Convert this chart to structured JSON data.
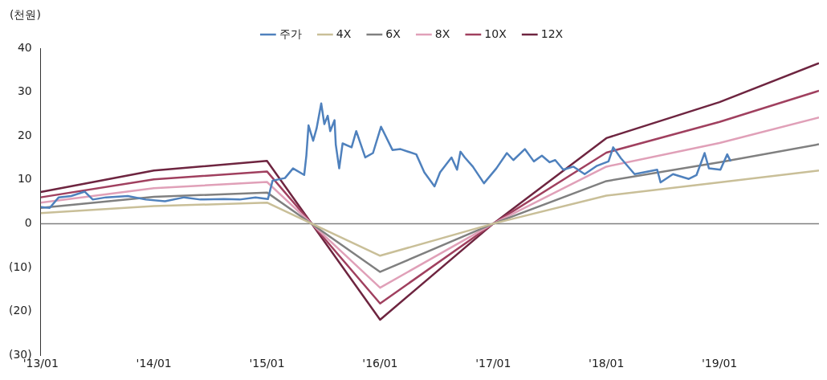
{
  "chart_data": {
    "type": "line",
    "ylabel": "(천원)",
    "legend": "top",
    "line_style": "solid",
    "marker": "none",
    "xlim": [
      "2013-01-01",
      "2019-11-18"
    ],
    "xticks": [
      {
        "value": "2013-01",
        "label": "'13/01"
      },
      {
        "value": "2014-01",
        "label": "'14/01"
      },
      {
        "value": "2015-01",
        "label": "'15/01"
      },
      {
        "value": "2016-01",
        "label": "'16/01"
      },
      {
        "value": "2017-01",
        "label": "'17/01"
      },
      {
        "value": "2018-01",
        "label": "'18/01"
      },
      {
        "value": "2019-01",
        "label": "'19/01"
      }
    ],
    "ylim": [
      -30,
      40
    ],
    "yticks": [
      {
        "value": -30,
        "label": "(30)"
      },
      {
        "value": -20,
        "label": "(20)"
      },
      {
        "value": -10,
        "label": "(10)"
      },
      0,
      10,
      20,
      30,
      40
    ],
    "ref_lines": [
      {
        "axis": "y",
        "value": 0,
        "color": "#808080"
      }
    ],
    "series": [
      {
        "name": "주가",
        "color": "#4f81bd",
        "x": [
          "2013-01-01",
          "2013-01-30",
          "2013-02-28",
          "2013-04-09",
          "2013-05-23",
          "2013-06-18",
          "2013-07-31",
          "2013-10-09",
          "2013-12-06",
          "2014-02-06",
          "2014-04-09",
          "2014-05-31",
          "2014-08-15",
          "2014-10-05",
          "2014-11-25",
          "2015-01-04",
          "2015-01-19",
          "2015-02-28",
          "2015-03-26",
          "2015-05-01",
          "2015-05-08",
          "2015-05-15",
          "2015-05-30",
          "2015-06-10",
          "2015-06-25",
          "2015-07-05",
          "2015-07-16",
          "2015-07-24",
          "2015-08-07",
          "2015-08-11",
          "2015-08-22",
          "2015-09-02",
          "2015-10-01",
          "2015-10-16",
          "2015-11-14",
          "2015-12-09",
          "2016-01-04",
          "2016-02-10",
          "2016-03-07",
          "2016-04-27",
          "2016-05-23",
          "2016-06-25",
          "2016-07-13",
          "2016-08-19",
          "2016-09-06",
          "2016-09-17",
          "2016-10-01",
          "2016-10-27",
          "2016-12-02",
          "2017-01-11",
          "2017-02-14",
          "2017-03-07",
          "2017-04-13",
          "2017-05-12",
          "2017-06-07",
          "2017-07-02",
          "2017-07-20",
          "2017-08-15",
          "2017-09-17",
          "2017-10-23",
          "2017-12-02",
          "2018-01-08",
          "2018-01-23",
          "2018-02-17",
          "2018-04-02",
          "2018-06-14",
          "2018-06-25",
          "2018-08-04",
          "2018-09-24",
          "2018-10-19",
          "2018-11-14",
          "2018-11-28",
          "2019-01-04",
          "2019-01-26",
          "2019-02-06"
        ],
        "values": [
          3.8,
          3.6,
          6.0,
          6.3,
          7.3,
          5.5,
          6.0,
          6.3,
          5.5,
          5.1,
          6.0,
          5.5,
          5.6,
          5.5,
          6.0,
          5.6,
          9.8,
          10.4,
          12.6,
          11.1,
          15.5,
          22.4,
          18.9,
          21.7,
          27.4,
          22.7,
          24.6,
          21.1,
          23.6,
          18.0,
          12.6,
          18.3,
          17.4,
          21.1,
          15.1,
          16.1,
          22.1,
          16.8,
          17.0,
          15.8,
          11.7,
          8.5,
          11.7,
          15.1,
          12.3,
          16.4,
          15.1,
          13.0,
          9.2,
          12.6,
          16.1,
          14.5,
          17.0,
          14.2,
          15.5,
          14.0,
          14.5,
          12.3,
          13.0,
          11.3,
          13.2,
          14.2,
          17.4,
          14.9,
          11.3,
          12.3,
          9.4,
          11.3,
          10.2,
          11.1,
          16.1,
          12.6,
          12.3,
          15.8,
          14.2
        ]
      },
      {
        "name": "4X",
        "color": "#c9bf98",
        "x": [
          "2013-01",
          "2014-01",
          "2015-01",
          "2016-01",
          "2017-01",
          "2018-01",
          "2019-01",
          "2019-11-18"
        ],
        "values": [
          2.4,
          4.0,
          4.8,
          -7.3,
          0,
          6.4,
          9.4,
          12.1
        ]
      },
      {
        "name": "6X",
        "color": "#808080",
        "x": [
          "2013-01",
          "2014-01",
          "2015-01",
          "2016-01",
          "2017-01",
          "2018-01",
          "2019-01",
          "2019-11-18"
        ],
        "values": [
          3.6,
          6.1,
          7.1,
          -11.0,
          0,
          9.7,
          14.0,
          18.1
        ]
      },
      {
        "name": "8X",
        "color": "#e0a0b8",
        "x": [
          "2013-01",
          "2014-01",
          "2015-01",
          "2016-01",
          "2017-01",
          "2018-01",
          "2019-01",
          "2019-11-18"
        ],
        "values": [
          4.8,
          8.1,
          9.5,
          -14.6,
          0,
          13.0,
          18.4,
          24.2
        ]
      },
      {
        "name": "10X",
        "color": "#a0405f",
        "x": [
          "2013-01",
          "2014-01",
          "2015-01",
          "2016-01",
          "2017-01",
          "2018-01",
          "2019-01",
          "2019-11-18"
        ],
        "values": [
          6.0,
          10.1,
          11.9,
          -18.2,
          0,
          16.2,
          23.2,
          30.3
        ]
      },
      {
        "name": "12X",
        "color": "#6e2540",
        "x": [
          "2013-01",
          "2014-01",
          "2015-01",
          "2016-01",
          "2017-01",
          "2018-01",
          "2019-01",
          "2019-11-18"
        ],
        "values": [
          7.2,
          12.1,
          14.3,
          -21.9,
          0,
          19.5,
          27.7,
          36.6
        ]
      }
    ]
  }
}
